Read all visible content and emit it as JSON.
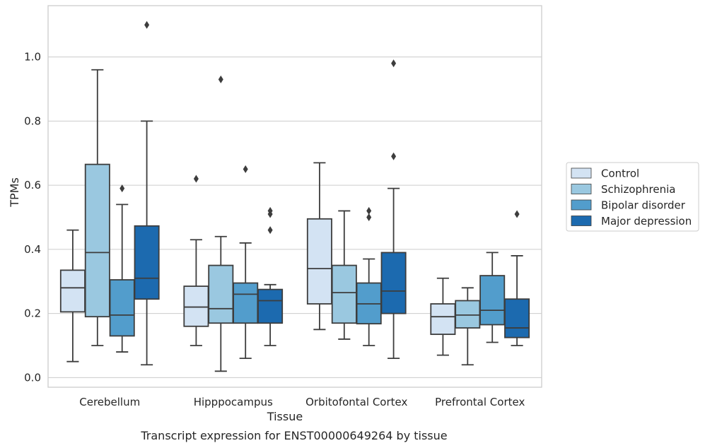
{
  "caption": "Transcript expression for ENST00000649264 by tissue",
  "chart_data": {
    "type": "box",
    "title": "",
    "xlabel": "Tissue",
    "ylabel": "TPMs",
    "ylim": [
      -0.03,
      1.16
    ],
    "yticks": [
      0.0,
      0.2,
      0.4,
      0.6,
      0.8,
      1.0
    ],
    "ytick_labels": [
      "0.0",
      "0.2",
      "0.4",
      "0.6",
      "0.8",
      "1.0"
    ],
    "grid": "horizontal",
    "legend_position": "right",
    "categories": [
      "Cerebellum",
      "Hipppocampus",
      "Orbitofontal Cortex",
      "Prefrontal Cortex"
    ],
    "series": [
      {
        "name": "Control",
        "color": "#d3e3f3",
        "boxes": [
          {
            "whislo": 0.05,
            "q1": 0.205,
            "med": 0.28,
            "q3": 0.335,
            "whishi": 0.46,
            "fliers": []
          },
          {
            "whislo": 0.1,
            "q1": 0.16,
            "med": 0.22,
            "q3": 0.285,
            "whishi": 0.43,
            "fliers": [
              0.62
            ]
          },
          {
            "whislo": 0.15,
            "q1": 0.23,
            "med": 0.34,
            "q3": 0.495,
            "whishi": 0.67,
            "fliers": []
          },
          {
            "whislo": 0.07,
            "q1": 0.135,
            "med": 0.19,
            "q3": 0.23,
            "whishi": 0.31,
            "fliers": []
          }
        ]
      },
      {
        "name": "Schizophrenia",
        "color": "#9ac8e0",
        "boxes": [
          {
            "whislo": 0.1,
            "q1": 0.19,
            "med": 0.39,
            "q3": 0.665,
            "whishi": 0.96,
            "fliers": []
          },
          {
            "whislo": 0.02,
            "q1": 0.17,
            "med": 0.215,
            "q3": 0.35,
            "whishi": 0.44,
            "fliers": [
              0.93
            ]
          },
          {
            "whislo": 0.12,
            "q1": 0.17,
            "med": 0.265,
            "q3": 0.35,
            "whishi": 0.52,
            "fliers": []
          },
          {
            "whislo": 0.04,
            "q1": 0.155,
            "med": 0.195,
            "q3": 0.24,
            "whishi": 0.28,
            "fliers": []
          }
        ]
      },
      {
        "name": "Bipolar disorder",
        "color": "#529dcc",
        "boxes": [
          {
            "whislo": 0.08,
            "q1": 0.13,
            "med": 0.195,
            "q3": 0.305,
            "whishi": 0.54,
            "fliers": [
              0.59
            ]
          },
          {
            "whislo": 0.06,
            "q1": 0.17,
            "med": 0.26,
            "q3": 0.295,
            "whishi": 0.42,
            "fliers": [
              0.65
            ]
          },
          {
            "whislo": 0.1,
            "q1": 0.168,
            "med": 0.23,
            "q3": 0.295,
            "whishi": 0.37,
            "fliers": [
              0.5,
              0.52
            ]
          },
          {
            "whislo": 0.11,
            "q1": 0.165,
            "med": 0.21,
            "q3": 0.318,
            "whishi": 0.39,
            "fliers": []
          }
        ]
      },
      {
        "name": "Major depression",
        "color": "#1c6aaf",
        "boxes": [
          {
            "whislo": 0.04,
            "q1": 0.245,
            "med": 0.31,
            "q3": 0.473,
            "whishi": 0.8,
            "fliers": [
              1.1
            ]
          },
          {
            "whislo": 0.1,
            "q1": 0.17,
            "med": 0.24,
            "q3": 0.275,
            "whishi": 0.29,
            "fliers": [
              0.46,
              0.51,
              0.52
            ]
          },
          {
            "whislo": 0.06,
            "q1": 0.2,
            "med": 0.27,
            "q3": 0.39,
            "whishi": 0.59,
            "fliers": [
              0.69,
              0.98
            ]
          },
          {
            "whislo": 0.1,
            "q1": 0.125,
            "med": 0.155,
            "q3": 0.245,
            "whishi": 0.38,
            "fliers": [
              0.51
            ]
          }
        ]
      }
    ]
  }
}
